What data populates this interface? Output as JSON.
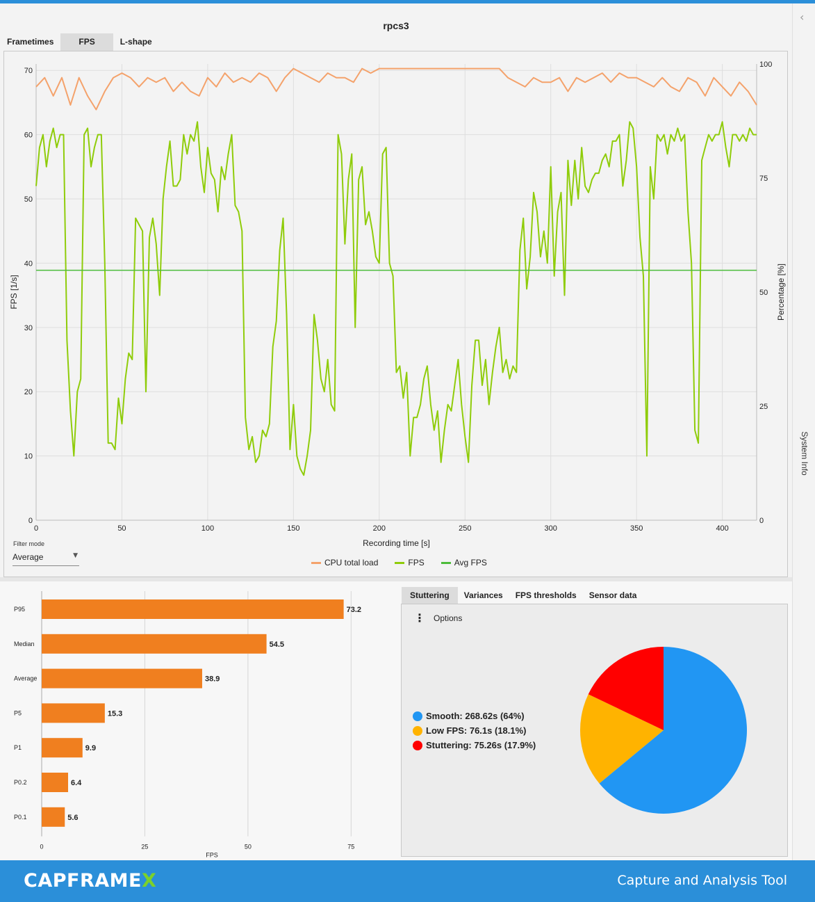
{
  "chart_title": "rpcs3",
  "chart_tabs": [
    "Frametimes",
    "FPS",
    "L-shape"
  ],
  "active_chart_tab": 1,
  "rail_label": "System Info",
  "filter": {
    "label": "Filter mode",
    "value": "Average"
  },
  "legend": [
    {
      "label": "CPU total load",
      "color": "#f4a26b"
    },
    {
      "label": "FPS",
      "color": "#8fcc0a"
    },
    {
      "label": "Avg FPS",
      "color": "#4cbc3b"
    }
  ],
  "chart_data": [
    {
      "type": "line",
      "xlabel": "Recording time [s]",
      "ylabel": "FPS [1/s]",
      "y2label": "Percentage [%]",
      "xlim": [
        0,
        420
      ],
      "ylim": [
        0,
        71
      ],
      "y2lim": [
        0,
        100
      ],
      "xticks": [
        0,
        50,
        100,
        150,
        200,
        250,
        300,
        350,
        400
      ],
      "yticks": [
        0,
        10,
        20,
        30,
        40,
        50,
        60,
        70
      ],
      "y2ticks": [
        0,
        25,
        50,
        75,
        100
      ],
      "series": [
        {
          "name": "CPU total load",
          "axis": "right",
          "color": "#f4a26b",
          "x": [
            0,
            5,
            10,
            15,
            20,
            25,
            30,
            35,
            40,
            45,
            50,
            55,
            60,
            65,
            70,
            75,
            80,
            85,
            90,
            95,
            100,
            105,
            110,
            115,
            120,
            125,
            130,
            135,
            140,
            145,
            150,
            155,
            160,
            165,
            170,
            175,
            180,
            185,
            190,
            195,
            200,
            205,
            210,
            215,
            220,
            225,
            230,
            235,
            240,
            245,
            250,
            255,
            260,
            265,
            270,
            275,
            280,
            285,
            290,
            295,
            300,
            305,
            310,
            315,
            320,
            325,
            330,
            335,
            340,
            345,
            350,
            355,
            360,
            365,
            370,
            375,
            380,
            385,
            390,
            395,
            400,
            405,
            410,
            415,
            420
          ],
          "values": [
            95,
            97,
            93,
            97,
            91,
            97,
            93,
            90,
            94,
            97,
            98,
            97,
            95,
            97,
            96,
            97,
            94,
            96,
            94,
            93,
            97,
            95,
            98,
            96,
            97,
            96,
            98,
            97,
            94,
            97,
            99,
            98,
            97,
            96,
            98,
            97,
            97,
            96,
            99,
            98,
            99,
            99,
            99,
            99,
            99,
            99,
            99,
            99,
            99,
            99,
            99,
            99,
            99,
            99,
            99,
            97,
            96,
            95,
            97,
            96,
            96,
            97,
            94,
            97,
            96,
            97,
            98,
            96,
            98,
            97,
            97,
            96,
            95,
            97,
            95,
            94,
            97,
            96,
            93,
            97,
            95,
            93,
            96,
            94,
            91
          ]
        },
        {
          "name": "FPS",
          "axis": "left",
          "color": "#8fcc0a",
          "x": [
            0,
            2,
            4,
            6,
            8,
            10,
            12,
            14,
            16,
            18,
            20,
            22,
            24,
            26,
            28,
            30,
            32,
            34,
            36,
            38,
            40,
            42,
            44,
            46,
            48,
            50,
            52,
            54,
            56,
            58,
            60,
            62,
            64,
            66,
            68,
            70,
            72,
            74,
            76,
            78,
            80,
            82,
            84,
            86,
            88,
            90,
            92,
            94,
            96,
            98,
            100,
            102,
            104,
            106,
            108,
            110,
            112,
            114,
            116,
            118,
            120,
            122,
            124,
            126,
            128,
            130,
            132,
            134,
            136,
            138,
            140,
            142,
            144,
            146,
            148,
            150,
            152,
            154,
            156,
            158,
            160,
            162,
            164,
            166,
            168,
            170,
            172,
            174,
            176,
            178,
            180,
            182,
            184,
            186,
            188,
            190,
            192,
            194,
            196,
            198,
            200,
            202,
            204,
            206,
            208,
            210,
            212,
            214,
            216,
            218,
            220,
            222,
            224,
            226,
            228,
            230,
            232,
            234,
            236,
            238,
            240,
            242,
            244,
            246,
            248,
            250,
            252,
            254,
            256,
            258,
            260,
            262,
            264,
            266,
            268,
            270,
            272,
            274,
            276,
            278,
            280,
            282,
            284,
            286,
            288,
            290,
            292,
            294,
            296,
            298,
            300,
            302,
            304,
            306,
            308,
            310,
            312,
            314,
            316,
            318,
            320,
            322,
            324,
            326,
            328,
            330,
            332,
            334,
            336,
            338,
            340,
            342,
            344,
            346,
            348,
            350,
            352,
            354,
            356,
            358,
            360,
            362,
            364,
            366,
            368,
            370,
            372,
            374,
            376,
            378,
            380,
            382,
            384,
            386,
            388,
            390,
            392,
            394,
            396,
            398,
            400,
            402,
            404,
            406,
            408,
            410,
            412,
            414,
            416,
            418,
            420
          ],
          "values": [
            52,
            58,
            60,
            55,
            59,
            61,
            58,
            60,
            60,
            28,
            17,
            10,
            20,
            22,
            60,
            61,
            55,
            58,
            60,
            60,
            40,
            12,
            12,
            11,
            19,
            15,
            22,
            26,
            25,
            47,
            46,
            45,
            20,
            44,
            47,
            43,
            35,
            50,
            55,
            59,
            52,
            52,
            53,
            60,
            57,
            60,
            59,
            62,
            55,
            51,
            58,
            54,
            53,
            48,
            55,
            53,
            57,
            60,
            49,
            48,
            45,
            16,
            11,
            13,
            9,
            10,
            14,
            13,
            15,
            27,
            31,
            42,
            47,
            32,
            11,
            18,
            10,
            8,
            7,
            10,
            14,
            32,
            28,
            22,
            20,
            25,
            18,
            17,
            60,
            57,
            43,
            53,
            57,
            30,
            53,
            55,
            46,
            48,
            45,
            41,
            40,
            57,
            58,
            40,
            38,
            23,
            24,
            19,
            23,
            10,
            16,
            16,
            18,
            22,
            24,
            18,
            14,
            17,
            9,
            14,
            18,
            17,
            21,
            25,
            18,
            13,
            9,
            21,
            28,
            28,
            21,
            25,
            18,
            23,
            27,
            30,
            23,
            25,
            22,
            24,
            23,
            42,
            47,
            36,
            41,
            51,
            48,
            41,
            45,
            40,
            55,
            38,
            48,
            51,
            35,
            56,
            49,
            56,
            50,
            58,
            52,
            51,
            53,
            54,
            54,
            56,
            57,
            55,
            59,
            59,
            60,
            52,
            56,
            62,
            61,
            55,
            44,
            38,
            10,
            55,
            50,
            60,
            59,
            60,
            57,
            60,
            59,
            61,
            59,
            60,
            48,
            40,
            14,
            12,
            56,
            58,
            60,
            59,
            60,
            60,
            62,
            58,
            55,
            60,
            60,
            59,
            60,
            59,
            61,
            60,
            60
          ]
        },
        {
          "name": "Avg FPS",
          "axis": "left",
          "color": "#4cbc3b",
          "x": [
            0,
            420
          ],
          "values": [
            38.9,
            38.9
          ]
        }
      ]
    },
    {
      "type": "bar",
      "orientation": "horizontal",
      "xlabel": "FPS",
      "xlim": [
        0,
        80
      ],
      "xticks": [
        0,
        25,
        50,
        75
      ],
      "categories": [
        "P95",
        "Median",
        "Average",
        "P5",
        "P1",
        "P0.2",
        "P0.1"
      ],
      "values": [
        73.2,
        54.5,
        38.9,
        15.3,
        9.9,
        6.4,
        5.6
      ],
      "color": "#f07f1f"
    },
    {
      "type": "pie",
      "slices": [
        {
          "label": "Smooth",
          "value": 64,
          "display": "268.62s (64%)",
          "color": "#2196f3"
        },
        {
          "label": "Low FPS",
          "value": 18.1,
          "display": "76.1s (18.1%)",
          "color": "#ffb300"
        },
        {
          "label": "Stuttering",
          "value": 17.9,
          "display": "75.26s (17.9%)",
          "color": "#ff0000"
        }
      ]
    }
  ],
  "stat_tabs": [
    "Stuttering",
    "Variances",
    "FPS thresholds",
    "Sensor data"
  ],
  "active_stat_tab": 0,
  "options_label": "Options",
  "pie_legend_text": [
    {
      "label": "Smooth:",
      "value": "268.62s (64%)"
    },
    {
      "label": "Low FPS:",
      "value": "76.1s (18.1%)"
    },
    {
      "label": "Stuttering:",
      "value": "75.26s (17.9%)"
    }
  ],
  "footer": {
    "logo_main": "CAPFRAME",
    "logo_x": "X",
    "tagline": "Capture and Analysis Tool"
  }
}
